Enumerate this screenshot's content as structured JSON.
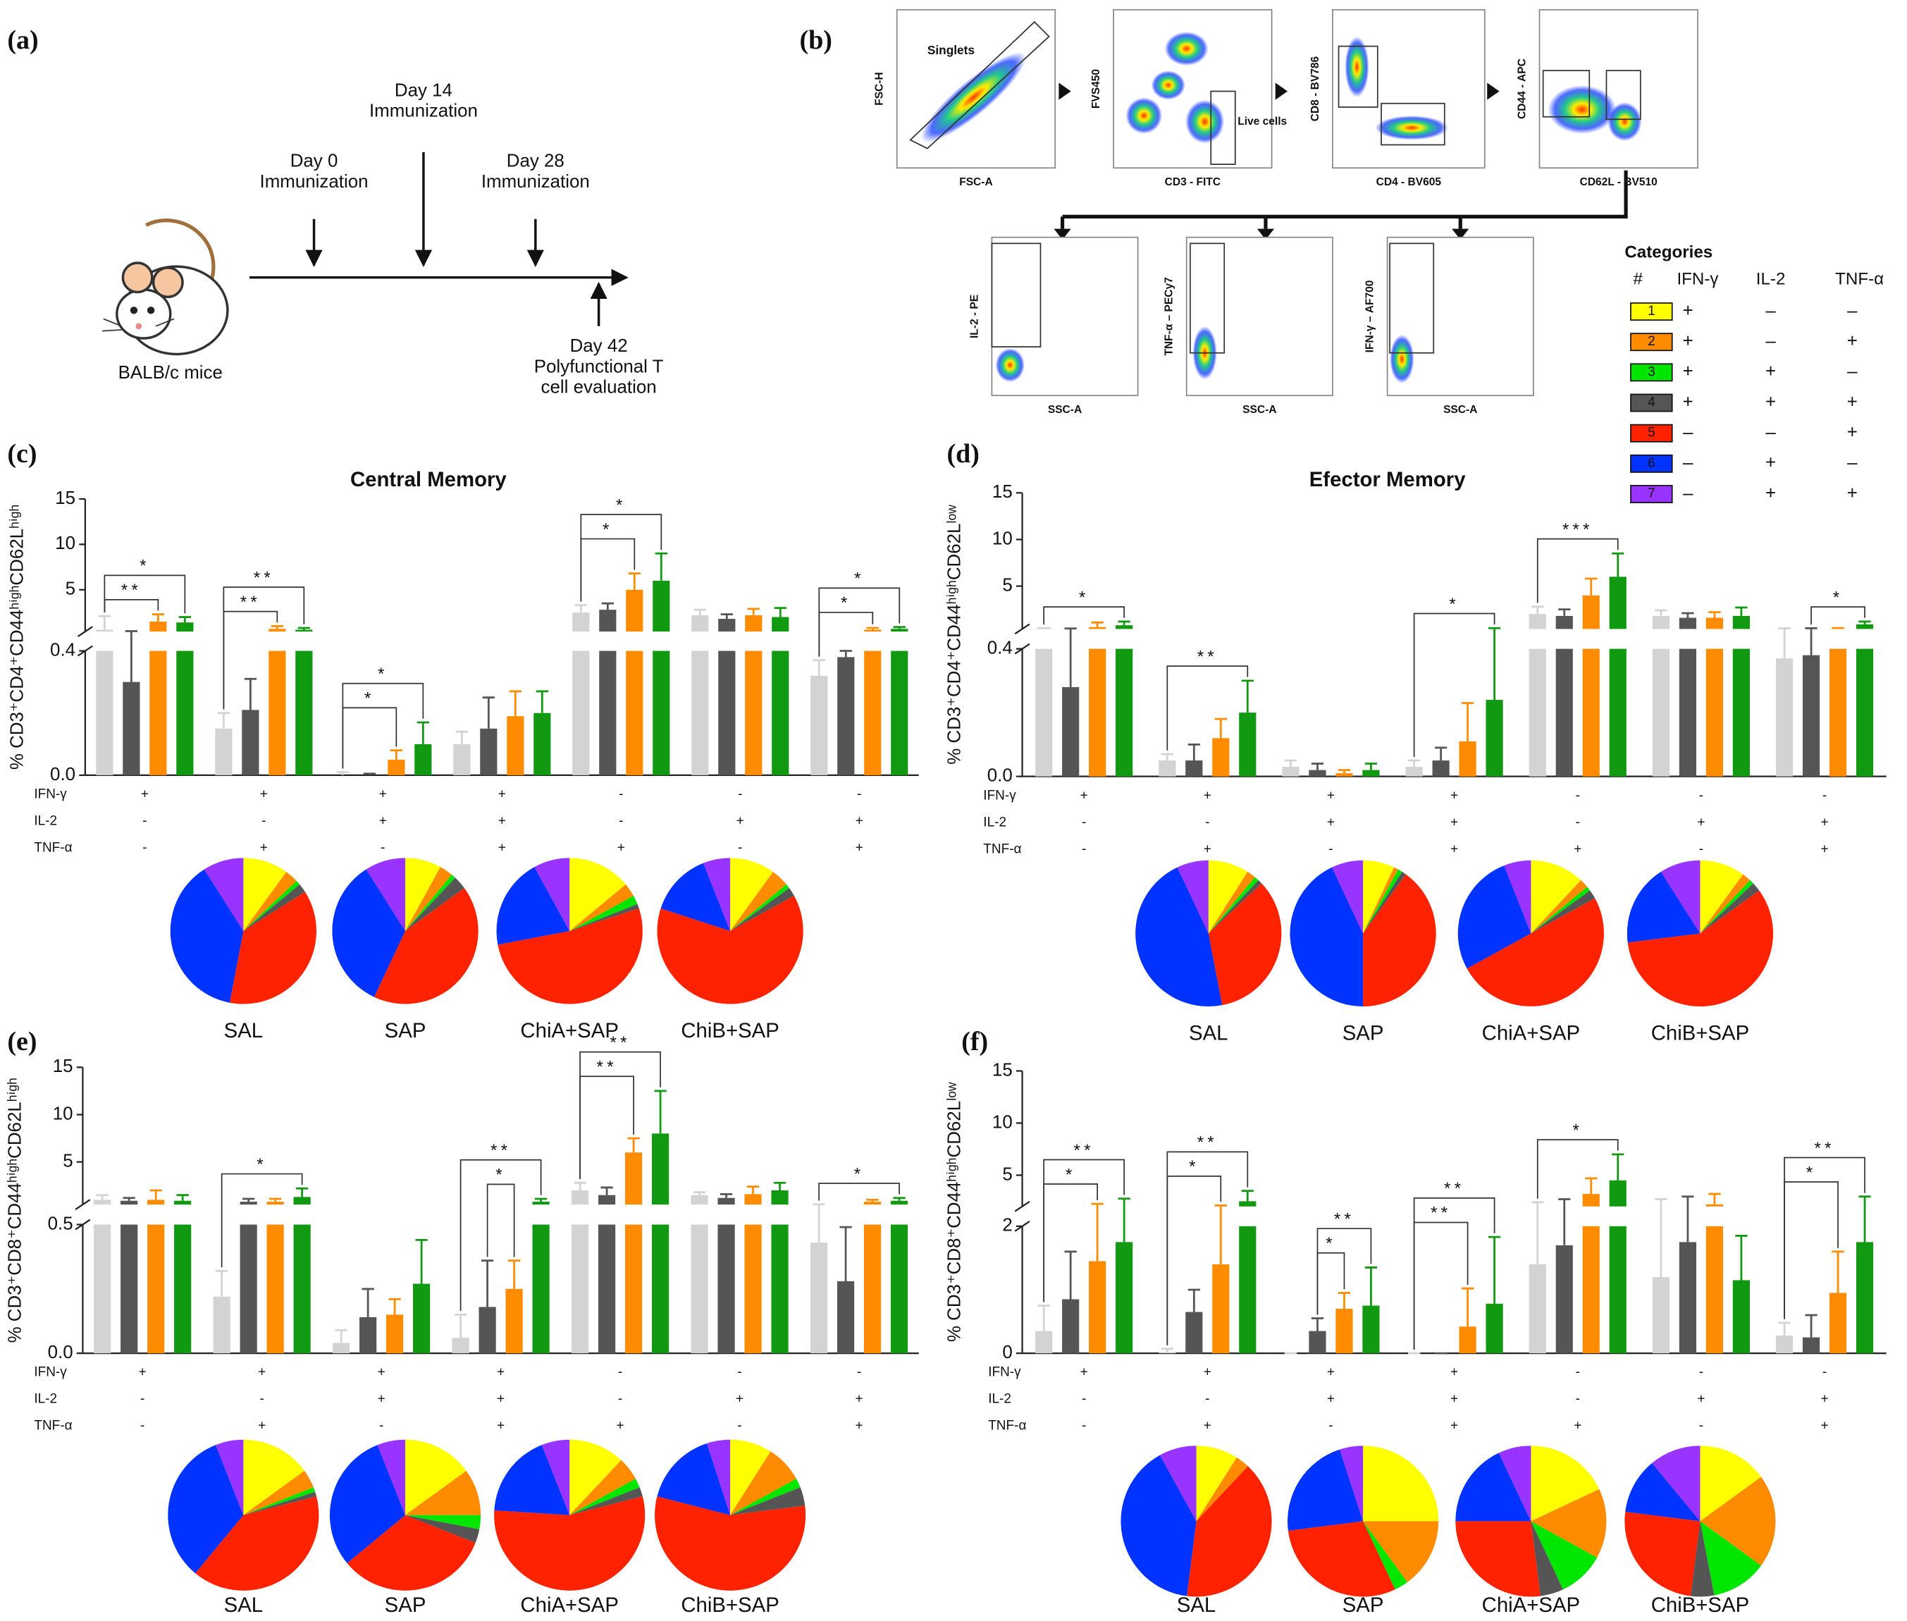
{
  "panel_a": {
    "label": "(a)",
    "events": [
      {
        "lines": [
          "Day 0",
          "Immunization"
        ]
      },
      {
        "lines": [
          "Day 14",
          "Immunization"
        ]
      },
      {
        "lines": [
          "Day 28",
          "Immunization"
        ]
      },
      {
        "lines": [
          "Day 42",
          "Polyfunctional T",
          "cell evaluation"
        ]
      }
    ],
    "subject": "BALB/c mice"
  },
  "panel_b": {
    "label": "(b)",
    "plots": [
      {
        "x_label": "FSC-A",
        "y_label": "FSC-H",
        "gate_label": "Singlets"
      },
      {
        "x_label": "CD3 - FITC",
        "y_label": "FVS450",
        "gate_label": "Live cells"
      },
      {
        "x_label": "CD4 - BV605",
        "y_label": "CD8 - BV786"
      },
      {
        "x_label": "CD62L - BV510",
        "y_label": "CD44 - APC"
      },
      {
        "x_label": "SSC-A",
        "y_label": "IL-2 - PE"
      },
      {
        "x_label": "SSC-A",
        "y_label": "TNF-α – PECy7"
      },
      {
        "x_label": "SSC-A",
        "y_label": "IFN-γ – AF700"
      }
    ],
    "categories_table": {
      "title": "Categories",
      "header": [
        "#",
        "IFN-γ",
        "IL-2",
        "TNF-α"
      ],
      "colors": [
        "#ffff00",
        "#ff8c00",
        "#00e600",
        "#555555",
        "#ff2200",
        "#0033ff",
        "#9933ff"
      ],
      "rows": [
        [
          "1",
          "+",
          "–",
          "–"
        ],
        [
          "2",
          "+",
          "–",
          "+"
        ],
        [
          "3",
          "+",
          "+",
          "–"
        ],
        [
          "4",
          "+",
          "+",
          "+"
        ],
        [
          "5",
          "–",
          "–",
          "+"
        ],
        [
          "6",
          "–",
          "+",
          "–"
        ],
        [
          "7",
          "–",
          "+",
          "+"
        ]
      ]
    }
  },
  "chart_data": [
    {
      "type": "bar",
      "label": "(c)",
      "title": "Central Memory",
      "ylabel": "% CD3⁺CD4⁺CD44ʰⁱᵍʰCD62Lʰⁱᵍʰ",
      "ylim": [
        0,
        15
      ],
      "yticks": [
        {
          "value": 0,
          "label": "0.0"
        },
        0.4,
        5,
        10,
        15
      ],
      "series": [
        {
          "name": "SAL",
          "color": "#d3d3d3",
          "values": [
            0.6,
            0.15,
            0,
            0.1,
            2.5,
            2.2,
            0.32
          ],
          "errors": [
            1.5,
            0.05,
            0.01,
            0.04,
            0.8,
            0.6,
            0.05
          ]
        },
        {
          "name": "SAP",
          "color": "#555555",
          "values": [
            0.3,
            0.21,
            0,
            0.15,
            2.8,
            1.8,
            0.38
          ],
          "errors": [
            0.15,
            0.1,
            0.005,
            0.1,
            0.7,
            0.5,
            0.02
          ]
        },
        {
          "name": "ChiA+SAP",
          "color": "#ff8c00",
          "values": [
            1.5,
            0.7,
            0.05,
            0.19,
            5,
            2.2,
            0.6
          ],
          "errors": [
            0.8,
            0.3,
            0.03,
            0.08,
            1.8,
            0.7,
            0.2
          ]
        },
        {
          "name": "ChiB+SAP",
          "color": "#119911",
          "values": [
            1.4,
            0.6,
            0.1,
            0.2,
            6,
            2,
            0.7
          ],
          "errors": [
            0.6,
            0.2,
            0.07,
            0.07,
            3,
            1,
            0.2
          ]
        }
      ],
      "sign_rows": [
        {
          "name": "IFN-γ",
          "signs": [
            "+",
            "+",
            "+",
            "+",
            "-",
            "-",
            "-"
          ]
        },
        {
          "name": "IL-2",
          "signs": [
            "-",
            "-",
            "+",
            "+",
            "-",
            "+",
            "+"
          ]
        },
        {
          "name": "TNF-α",
          "signs": [
            "-",
            "+",
            "-",
            "+",
            "+",
            "-",
            "+"
          ]
        }
      ],
      "significance": [
        {
          "group": 0,
          "from": 0,
          "to": 2,
          "label": "**"
        },
        {
          "group": 0,
          "from": 0,
          "to": 3,
          "label": "*"
        },
        {
          "group": 1,
          "from": 0,
          "to": 2,
          "label": "**"
        },
        {
          "group": 1,
          "from": 0,
          "to": 3,
          "label": "**"
        },
        {
          "group": 2,
          "from": 0,
          "to": 2,
          "label": "*"
        },
        {
          "group": 2,
          "from": 0,
          "to": 3,
          "label": "*"
        },
        {
          "group": 4,
          "from": 0,
          "to": 2,
          "label": "*"
        },
        {
          "group": 4,
          "from": 0,
          "to": 3,
          "label": "*"
        },
        {
          "group": 6,
          "from": 0,
          "to": 2,
          "label": "*"
        },
        {
          "group": 6,
          "from": 0,
          "to": 3,
          "label": "*"
        }
      ]
    },
    {
      "type": "pie",
      "colors": [
        "#ffff00",
        "#ff8c00",
        "#00e600",
        "#555555",
        "#ff2200",
        "#0033ff",
        "#9933ff"
      ],
      "pies": [
        {
          "name": "SAL",
          "values": [
            10,
            3,
            1,
            2,
            37,
            38,
            9
          ]
        },
        {
          "name": "SAP",
          "values": [
            8,
            3,
            1,
            3,
            42,
            34,
            9
          ]
        },
        {
          "name": "ChiA+SAP",
          "values": [
            14,
            3,
            2,
            1,
            52,
            20,
            8
          ]
        },
        {
          "name": "ChiB+SAP",
          "values": [
            10,
            4,
            1,
            2,
            63,
            14,
            6
          ]
        }
      ]
    },
    {
      "type": "bar",
      "label": "(d)",
      "title": "Efector Memory",
      "ylabel": "% CD3⁺CD4⁺CD44ʰⁱᵍʰCD62Lˡᵒʷ",
      "ylim": [
        0,
        15
      ],
      "yticks": [
        {
          "value": 0,
          "label": "0.0"
        },
        0.4,
        5,
        10,
        15
      ],
      "series": [
        {
          "name": "SAL",
          "color": "#d3d3d3",
          "values": [
            0.48,
            0.05,
            0.03,
            0.03,
            2,
            1.8,
            0.37
          ],
          "errors": [
            0.01,
            0.02,
            0.02,
            0.02,
            0.8,
            0.6,
            0.1
          ]
        },
        {
          "name": "SAP",
          "color": "#555555",
          "values": [
            0.28,
            0.05,
            0.02,
            0.05,
            1.8,
            1.6,
            0.38
          ],
          "errors": [
            0.17,
            0.05,
            0.02,
            0.04,
            0.7,
            0.5,
            0.1
          ]
        },
        {
          "name": "ChiA+SAP",
          "color": "#ff8c00",
          "values": [
            0.6,
            0.12,
            0.01,
            0.11,
            4,
            1.6,
            0.42
          ],
          "errors": [
            0.5,
            0.06,
            0.01,
            0.12,
            1.8,
            0.6,
            0.08
          ]
        },
        {
          "name": "ChiB+SAP",
          "color": "#119911",
          "values": [
            0.8,
            0.2,
            0.02,
            0.24,
            6,
            1.8,
            0.9
          ],
          "errors": [
            0.4,
            0.1,
            0.02,
            0.25,
            2.5,
            0.9,
            0.3
          ]
        }
      ],
      "sign_rows": [
        {
          "name": "IFN-γ",
          "signs": [
            "+",
            "+",
            "+",
            "+",
            "-",
            "-",
            "-"
          ]
        },
        {
          "name": "IL-2",
          "signs": [
            "-",
            "-",
            "+",
            "+",
            "-",
            "+",
            "+"
          ]
        },
        {
          "name": "TNF-α",
          "signs": [
            "-",
            "+",
            "-",
            "+",
            "+",
            "-",
            "+"
          ]
        }
      ],
      "significance": [
        {
          "group": 0,
          "from": 0,
          "to": 3,
          "label": "*"
        },
        {
          "group": 1,
          "from": 0,
          "to": 3,
          "label": "**"
        },
        {
          "group": 3,
          "from": 0,
          "to": 3,
          "label": "*"
        },
        {
          "group": 4,
          "from": 0,
          "to": 3,
          "label": "***"
        },
        {
          "group": 6,
          "from": 1,
          "to": 3,
          "label": "*"
        }
      ]
    },
    {
      "type": "pie",
      "colors": [
        "#ffff00",
        "#ff8c00",
        "#00e600",
        "#555555",
        "#ff2200",
        "#0033ff",
        "#9933ff"
      ],
      "pies": [
        {
          "name": "SAL",
          "values": [
            9,
            2,
            1,
            1,
            34,
            46,
            7
          ]
        },
        {
          "name": "SAP",
          "values": [
            7,
            1,
            1,
            1,
            40,
            43,
            7
          ]
        },
        {
          "name": "ChiA+SAP",
          "values": [
            12,
            2,
            1,
            2,
            50,
            27,
            6
          ]
        },
        {
          "name": "ChiB+SAP",
          "values": [
            10,
            2,
            1,
            2,
            58,
            18,
            9
          ]
        }
      ]
    },
    {
      "type": "bar",
      "label": "(e)",
      "ylabel": "% CD3⁺CD8⁺CD44ʰⁱᵍʰCD62Lʰⁱᵍʰ",
      "ylim": [
        0,
        15
      ],
      "yticks": [
        {
          "value": 0,
          "label": "0.0"
        },
        0.5,
        5,
        10,
        15
      ],
      "series": [
        {
          "name": "SAL",
          "color": "#d3d3d3",
          "values": [
            1,
            0.22,
            0.04,
            0.06,
            2,
            1.5,
            0.43
          ],
          "errors": [
            0.5,
            0.1,
            0.05,
            0.09,
            0.8,
            0.3,
            0.1
          ]
        },
        {
          "name": "SAP",
          "color": "#555555",
          "values": [
            0.9,
            0.8,
            0.14,
            0.18,
            1.5,
            1.2,
            0.28
          ],
          "errors": [
            0.3,
            0.3,
            0.11,
            0.18,
            0.8,
            0.4,
            0.21
          ]
        },
        {
          "name": "ChiA+SAP",
          "color": "#ff8c00",
          "values": [
            1,
            0.8,
            0.15,
            0.25,
            6,
            1.6,
            0.8
          ],
          "errors": [
            1,
            0.3,
            0.06,
            0.11,
            1.5,
            0.8,
            0.2
          ]
        },
        {
          "name": "ChiB+SAP",
          "color": "#119911",
          "values": [
            0.9,
            1.3,
            0.27,
            0.8,
            8,
            2,
            0.9
          ],
          "errors": [
            0.6,
            0.9,
            0.17,
            0.3,
            4.5,
            0.8,
            0.3
          ]
        }
      ],
      "sign_rows": [
        {
          "name": "IFN-γ",
          "signs": [
            "+",
            "+",
            "+",
            "+",
            "-",
            "-",
            "-"
          ]
        },
        {
          "name": "IL-2",
          "signs": [
            "-",
            "-",
            "+",
            "+",
            "-",
            "+",
            "+"
          ]
        },
        {
          "name": "TNF-α",
          "signs": [
            "-",
            "+",
            "-",
            "+",
            "+",
            "-",
            "+"
          ]
        }
      ],
      "significance": [
        {
          "group": 1,
          "from": 0,
          "to": 3,
          "label": "*"
        },
        {
          "group": 3,
          "from": 1,
          "to": 2,
          "label": "*"
        },
        {
          "group": 3,
          "from": 0,
          "to": 3,
          "label": "**"
        },
        {
          "group": 4,
          "from": 0,
          "to": 2,
          "label": "**"
        },
        {
          "group": 4,
          "from": 0,
          "to": 3,
          "label": "**"
        },
        {
          "group": 6,
          "from": 0,
          "to": 3,
          "label": "*"
        }
      ]
    },
    {
      "type": "pie",
      "colors": [
        "#ffff00",
        "#ff8c00",
        "#00e600",
        "#555555",
        "#ff2200",
        "#0033ff",
        "#9933ff"
      ],
      "pies": [
        {
          "name": "SAL",
          "values": [
            15,
            4,
            1,
            1,
            40,
            33,
            6
          ]
        },
        {
          "name": "SAP",
          "values": [
            15,
            10,
            3,
            3,
            33,
            30,
            6
          ]
        },
        {
          "name": "ChiA+SAP",
          "values": [
            12,
            5,
            2,
            2,
            55,
            18,
            6
          ]
        },
        {
          "name": "ChiB+SAP",
          "values": [
            9,
            8,
            2,
            4,
            56,
            16,
            5
          ]
        }
      ]
    },
    {
      "type": "bar",
      "label": "(f)",
      "ylabel": "% CD3⁺CD8⁺CD44ʰⁱᵍʰCD62Lˡᵒʷ",
      "ylim": [
        0,
        15
      ],
      "yticks": [
        0,
        2,
        5,
        10,
        15
      ],
      "series": [
        {
          "name": "SAL",
          "color": "#d3d3d3",
          "values": [
            0.35,
            0.02,
            0,
            0,
            1.4,
            1.2,
            0.28
          ],
          "errors": [
            0.4,
            0.05,
            0,
            0,
            1,
            1.5,
            0.2
          ]
        },
        {
          "name": "SAP",
          "color": "#555555",
          "values": [
            0.85,
            0.65,
            0.35,
            0,
            1.7,
            1.75,
            0.25
          ],
          "errors": [
            0.75,
            0.35,
            0.2,
            0,
            1,
            1.2,
            0.35
          ]
        },
        {
          "name": "ChiA+SAP",
          "color": "#ff8c00",
          "values": [
            1.45,
            1.4,
            0.7,
            0.42,
            3.2,
            2.2,
            0.95
          ],
          "errors": [
            0.8,
            0.7,
            0.25,
            0.6,
            1.5,
            1,
            0.65
          ]
        },
        {
          "name": "ChiB+SAP",
          "color": "#119911",
          "values": [
            1.75,
            2.5,
            0.75,
            0.78,
            4.5,
            1.15,
            1.75
          ],
          "errors": [
            1,
            1,
            0.6,
            1.05,
            2.5,
            0.7,
            1.2
          ]
        }
      ],
      "sign_rows": [
        {
          "name": "IFN-γ",
          "signs": [
            "+",
            "+",
            "+",
            "+",
            "-",
            "-",
            "-"
          ]
        },
        {
          "name": "IL-2",
          "signs": [
            "-",
            "-",
            "+",
            "+",
            "-",
            "+",
            "+"
          ]
        },
        {
          "name": "TNF-α",
          "signs": [
            "-",
            "+",
            "-",
            "+",
            "+",
            "-",
            "+"
          ]
        }
      ],
      "significance": [
        {
          "group": 0,
          "from": 0,
          "to": 2,
          "label": "*"
        },
        {
          "group": 0,
          "from": 0,
          "to": 3,
          "label": "**"
        },
        {
          "group": 1,
          "from": 0,
          "to": 2,
          "label": "*"
        },
        {
          "group": 1,
          "from": 0,
          "to": 3,
          "label": "**"
        },
        {
          "group": 2,
          "from": 1,
          "to": 2,
          "label": "*"
        },
        {
          "group": 2,
          "from": 1,
          "to": 3,
          "label": "**"
        },
        {
          "group": 3,
          "from": 0,
          "to": 2,
          "label": "**"
        },
        {
          "group": 3,
          "from": 0,
          "to": 3,
          "label": "**"
        },
        {
          "group": 4,
          "from": 0,
          "to": 3,
          "label": "*"
        },
        {
          "group": 6,
          "from": 0,
          "to": 2,
          "label": "*"
        },
        {
          "group": 6,
          "from": 0,
          "to": 3,
          "label": "**"
        }
      ]
    },
    {
      "type": "pie",
      "colors": [
        "#ffff00",
        "#ff8c00",
        "#00e600",
        "#555555",
        "#ff2200",
        "#0033ff",
        "#9933ff"
      ],
      "pies": [
        {
          "name": "SAL",
          "values": [
            9,
            3,
            0,
            0,
            40,
            40,
            8
          ]
        },
        {
          "name": "SAP",
          "values": [
            25,
            15,
            3,
            0,
            30,
            22,
            5
          ]
        },
        {
          "name": "ChiA+SAP",
          "values": [
            18,
            15,
            10,
            5,
            27,
            18,
            7
          ]
        },
        {
          "name": "ChiB+SAP",
          "values": [
            15,
            20,
            12,
            5,
            25,
            12,
            11
          ]
        }
      ]
    }
  ]
}
